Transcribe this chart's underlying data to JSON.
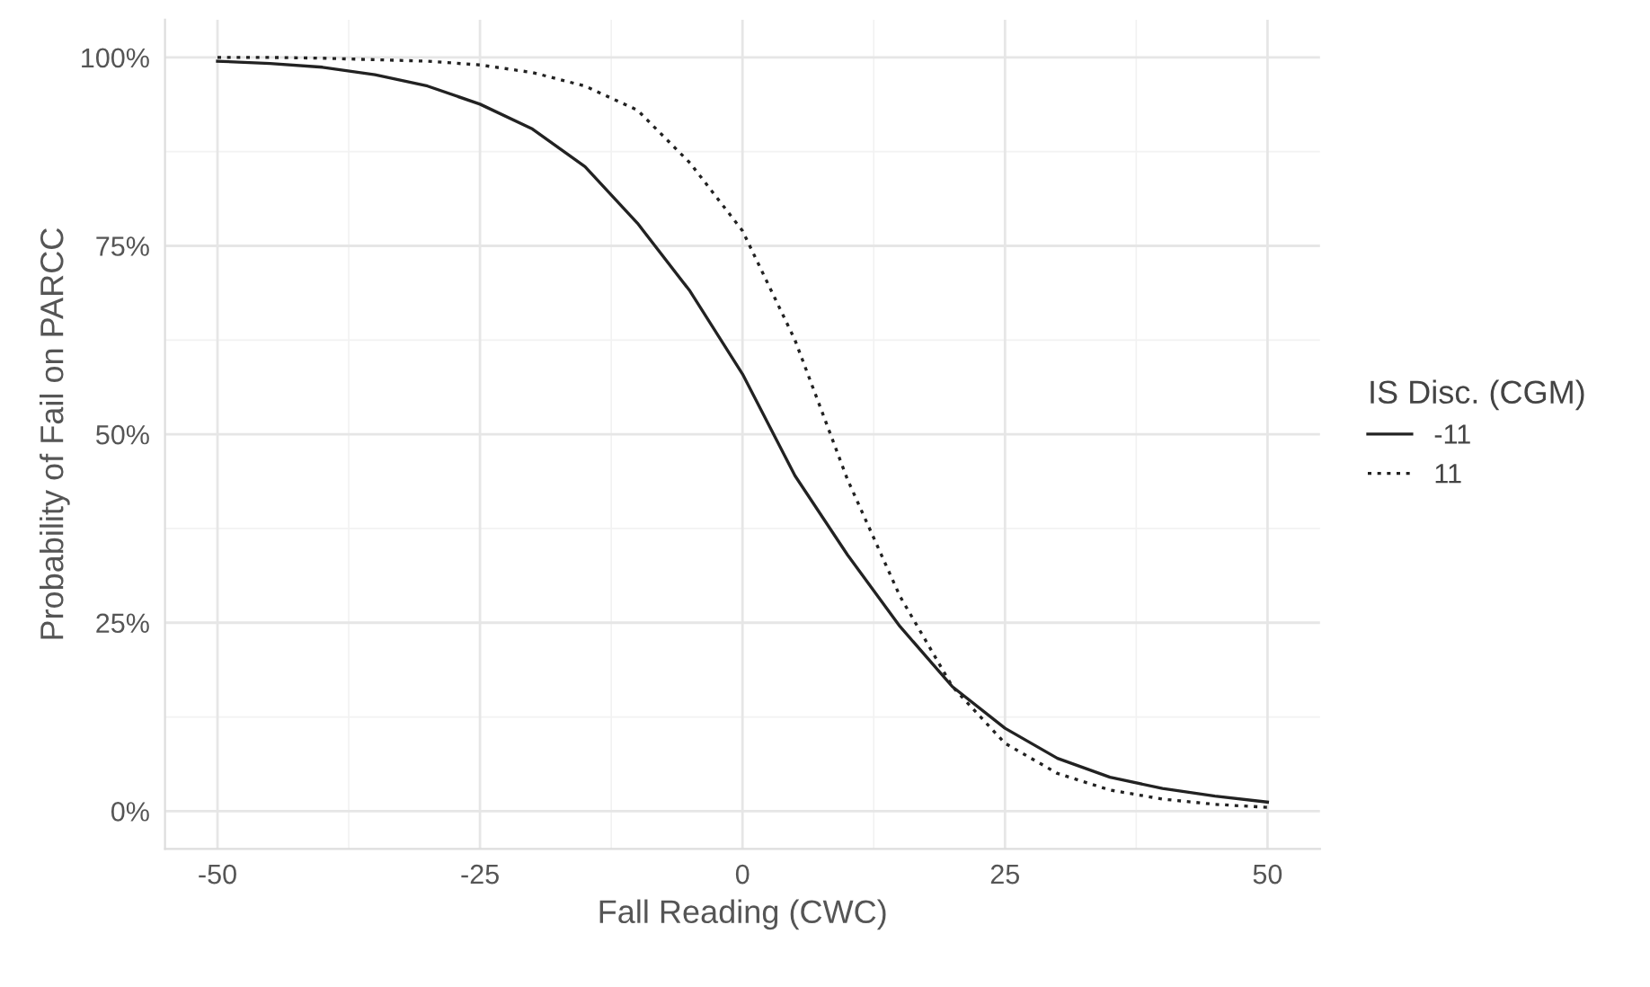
{
  "chart_data": {
    "type": "line",
    "xlabel": "Fall Reading (CWC)",
    "ylabel": "Probability of Fail on PARCC",
    "legend_title": "IS Disc. (CGM)",
    "legend": "right",
    "grid": true,
    "marker": "none",
    "x": [
      -50,
      -45,
      -40,
      -35,
      -30,
      -25,
      -20,
      -15,
      -10,
      -5,
      0,
      5,
      10,
      15,
      20,
      25,
      30,
      35,
      40,
      45,
      50
    ],
    "series": [
      {
        "name": "-11",
        "color": "#222222",
        "line_style": "solid",
        "values": [
          99.5,
          99.2,
          98.7,
          97.7,
          96.2,
          93.8,
          90.5,
          85.5,
          78,
          69,
          58,
          44.5,
          34,
          24.5,
          16.5,
          11,
          7,
          4.5,
          3,
          2,
          1.2
        ]
      },
      {
        "name": "11",
        "color": "#222222",
        "line_style": "dotted",
        "values": [
          100,
          100,
          99.9,
          99.7,
          99.5,
          99,
          98,
          96.2,
          93,
          86,
          77,
          62.5,
          44,
          28.5,
          16.5,
          9,
          5,
          2.8,
          1.6,
          0.9,
          0.5
        ]
      }
    ],
    "xlim": [
      -55,
      55
    ],
    "xticks": [
      -50,
      -25,
      0,
      25,
      50
    ],
    "ylim": [
      -5,
      105
    ],
    "yticks": [
      {
        "value": 0,
        "label": "0%"
      },
      {
        "value": 25,
        "label": "25%"
      },
      {
        "value": 50,
        "label": "50%"
      },
      {
        "value": 75,
        "label": "75%"
      },
      {
        "value": 100,
        "label": "100%"
      }
    ]
  }
}
